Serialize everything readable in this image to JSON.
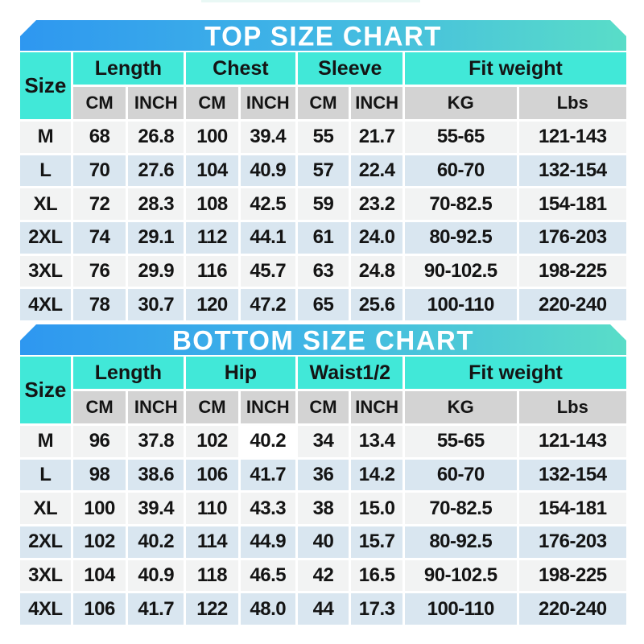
{
  "page": {
    "background": "#ffffff"
  },
  "colors": {
    "banner_gradient_left": "#2e97f0",
    "banner_gradient_right": "#59ddc8",
    "banner_text": "#ffffff",
    "header_cyan": "#41e8d8",
    "subheader_gray": "#d3d3d3",
    "row_light": "#f2f3f3",
    "row_blue": "#d9e6f0",
    "highlight_cell_white": "#ffffff",
    "text": "#141414"
  },
  "chart_data": [
    {
      "type": "table",
      "title": "TOP SIZE CHART",
      "corner_label": "Size",
      "column_groups": [
        {
          "label": "Length",
          "units": [
            "CM",
            "INCH"
          ]
        },
        {
          "label": "Chest",
          "units": [
            "CM",
            "INCH"
          ]
        },
        {
          "label": "Sleeve",
          "units": [
            "CM",
            "INCH"
          ]
        },
        {
          "label": "Fit weight",
          "units": [
            "KG",
            "Lbs"
          ]
        }
      ],
      "rows": [
        {
          "size": "M",
          "values": [
            "68",
            "26.8",
            "100",
            "39.4",
            "55",
            "21.7",
            "55-65",
            "121-143"
          ]
        },
        {
          "size": "L",
          "values": [
            "70",
            "27.6",
            "104",
            "40.9",
            "57",
            "22.4",
            "60-70",
            "132-154"
          ]
        },
        {
          "size": "XL",
          "values": [
            "72",
            "28.3",
            "108",
            "42.5",
            "59",
            "23.2",
            "70-82.5",
            "154-181"
          ]
        },
        {
          "size": "2XL",
          "values": [
            "74",
            "29.1",
            "112",
            "44.1",
            "61",
            "24.0",
            "80-92.5",
            "176-203"
          ]
        },
        {
          "size": "3XL",
          "values": [
            "76",
            "29.9",
            "116",
            "45.7",
            "63",
            "24.8",
            "90-102.5",
            "198-225"
          ]
        },
        {
          "size": "4XL",
          "values": [
            "78",
            "30.7",
            "120",
            "47.2",
            "65",
            "25.6",
            "100-110",
            "220-240"
          ]
        }
      ]
    },
    {
      "type": "table",
      "title": "BOTTOM SIZE CHART",
      "corner_label": "Size",
      "column_groups": [
        {
          "label": "Length",
          "units": [
            "CM",
            "INCH"
          ]
        },
        {
          "label": "Hip",
          "units": [
            "CM",
            "INCH"
          ]
        },
        {
          "label": "Waist1/2",
          "units": [
            "CM",
            "INCH"
          ]
        },
        {
          "label": "Fit weight",
          "units": [
            "KG",
            "Lbs"
          ]
        }
      ],
      "highlight_cell": {
        "row": 0,
        "col": 3
      },
      "rows": [
        {
          "size": "M",
          "values": [
            "96",
            "37.8",
            "102",
            "40.2",
            "34",
            "13.4",
            "55-65",
            "121-143"
          ]
        },
        {
          "size": "L",
          "values": [
            "98",
            "38.6",
            "106",
            "41.7",
            "36",
            "14.2",
            "60-70",
            "132-154"
          ]
        },
        {
          "size": "XL",
          "values": [
            "100",
            "39.4",
            "110",
            "43.3",
            "38",
            "15.0",
            "70-82.5",
            "154-181"
          ]
        },
        {
          "size": "2XL",
          "values": [
            "102",
            "40.2",
            "114",
            "44.9",
            "40",
            "15.7",
            "80-92.5",
            "176-203"
          ]
        },
        {
          "size": "3XL",
          "values": [
            "104",
            "40.9",
            "118",
            "46.5",
            "42",
            "16.5",
            "90-102.5",
            "198-225"
          ]
        },
        {
          "size": "4XL",
          "values": [
            "106",
            "41.7",
            "122",
            "48.0",
            "44",
            "17.3",
            "100-110",
            "220-240"
          ]
        }
      ]
    }
  ]
}
